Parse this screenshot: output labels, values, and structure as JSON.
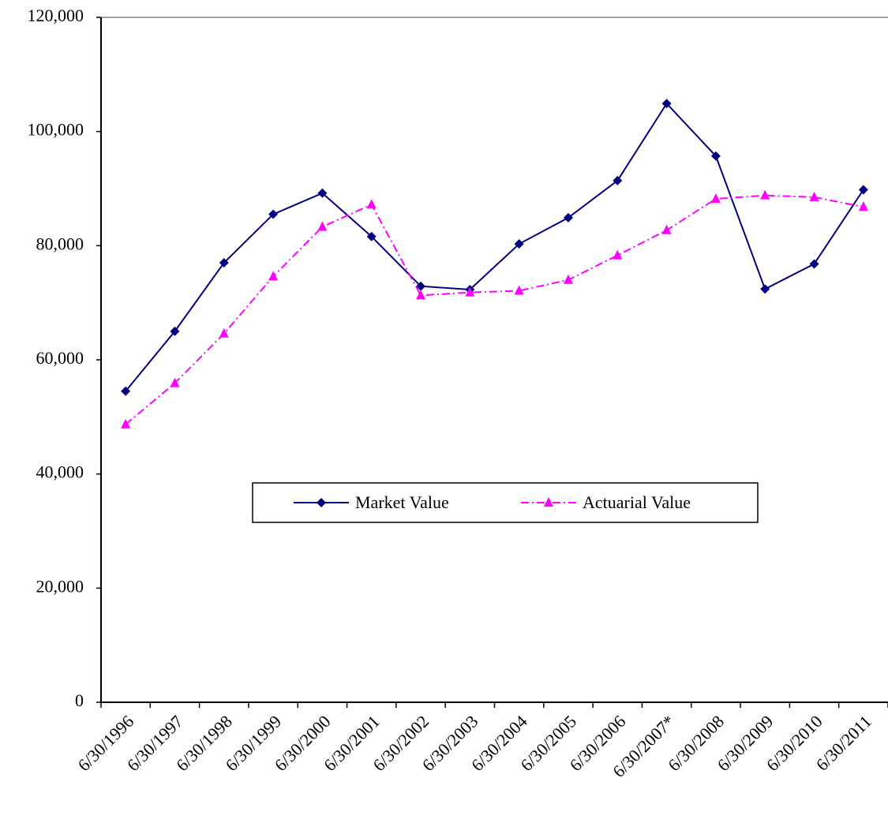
{
  "chart_data": {
    "type": "line",
    "categories": [
      "6/30/1996",
      "6/30/1997",
      "6/30/1998",
      "6/30/1999",
      "6/30/2000",
      "6/30/2001",
      "6/30/2002",
      "6/30/2003",
      "6/30/2004",
      "6/30/2005",
      "6/30/2006",
      "6/30/2007*",
      "6/30/2008",
      "6/30/2009",
      "6/30/2010",
      "6/30/2011"
    ],
    "series": [
      {
        "name": "Market Value",
        "color": "#000080",
        "marker": "diamond",
        "line_style": "solid",
        "values": [
          54500,
          65000,
          77000,
          85500,
          89200,
          81600,
          72900,
          72300,
          80300,
          84900,
          91400,
          104900,
          95700,
          72400,
          76800,
          89800
        ]
      },
      {
        "name": "Actuarial Value",
        "color": "#ff00ff",
        "marker": "triangle",
        "line_style": "dashdot",
        "values": [
          48700,
          55900,
          64600,
          74600,
          83300,
          87200,
          71300,
          71800,
          72100,
          74000,
          78300,
          82700,
          88200,
          88800,
          88500,
          86800
        ]
      }
    ],
    "ylim": [
      0,
      120000
    ],
    "yticks": [
      0,
      {
        "value": 20000,
        "label": "20,000"
      },
      {
        "value": 40000,
        "label": "40,000"
      },
      {
        "value": 60000,
        "label": "60,000"
      },
      {
        "value": 80000,
        "label": "80,000"
      },
      {
        "value": 100000,
        "label": "100,000"
      },
      {
        "value": 120000,
        "label": "120,000"
      }
    ],
    "grid": false,
    "legend": "center"
  }
}
